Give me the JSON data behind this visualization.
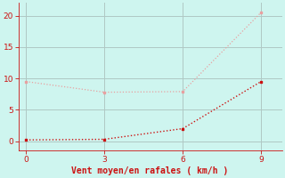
{
  "line1_x": [
    0,
    3,
    6,
    9
  ],
  "line1_y": [
    0.2,
    0.3,
    2.0,
    9.5
  ],
  "line2_x": [
    0,
    3,
    6,
    9
  ],
  "line2_y": [
    9.5,
    7.8,
    7.9,
    20.5
  ],
  "line1_color": "#cc1111",
  "line2_color": "#e8a0a0",
  "xlabel": "Vent moyen/en rafales ( km/h )",
  "xlabel_color": "#cc1111",
  "tick_color": "#cc1111",
  "bg_color": "#cef5ef",
  "grid_color": "#b0c8c4",
  "xlim": [
    -0.3,
    9.8
  ],
  "ylim": [
    -1.5,
    22
  ],
  "xticks": [
    0,
    3,
    6,
    9
  ],
  "yticks": [
    0,
    5,
    10,
    15,
    20
  ]
}
